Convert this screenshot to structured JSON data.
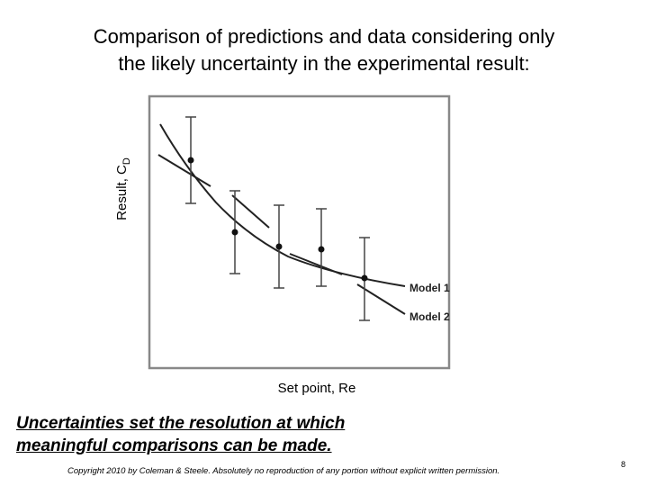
{
  "title": {
    "lines": [
      "Comparison of predictions and data considering only",
      "the likely uncertainty in the experimental result:"
    ]
  },
  "figure": {
    "y_label": {
      "text": "Result, C",
      "subscript": "D"
    },
    "x_label": "Set point, Re",
    "legend": [
      "Model 1",
      "Model 2"
    ]
  },
  "note": {
    "lines": [
      "Uncertainties set the resolution at which",
      "meaningful comparisons can be made."
    ]
  },
  "footer": {
    "copyright": "Copyright 2010 by Coleman & Steele.  Absolutely no reproduction of any portion without explicit written permission.",
    "page": "8"
  }
}
